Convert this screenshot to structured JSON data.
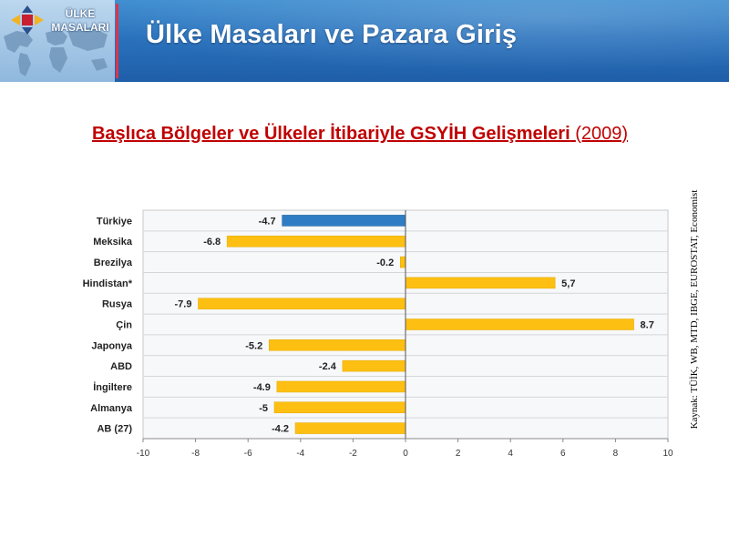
{
  "header": {
    "title": "Ülke Masaları ve Pazara Giriş",
    "logo_line1": "ÜLKE",
    "logo_line2": "MASALARI"
  },
  "chart_title": {
    "main": "Başlıca Bölgeler ve Ülkeler İtibariyle GSYİH Gelişmeleri",
    "year": "(2009)"
  },
  "source": "Kaynak: TÜİK, WB, MTD, IBGE, EUROSTAT, Economist",
  "colors": {
    "highlight": "#2e7cc4",
    "bar": "#fdc012",
    "title": "#c00000",
    "header": "#2a72bd"
  },
  "chart_data": {
    "type": "bar",
    "orientation": "horizontal",
    "title": "Başlıca Bölgeler ve Ülkeler İtibariyle GSYİH Gelişmeleri (2009)",
    "categories": [
      "Türkiye",
      "Meksika",
      "Brezilya",
      "Hindistan*",
      "Rusya",
      "Çin",
      "Japonya",
      "ABD",
      "İngiltere",
      "Almanya",
      "AB (27)"
    ],
    "values": [
      -4.7,
      -6.8,
      -0.2,
      5.7,
      -7.9,
      8.7,
      -5.2,
      -2.4,
      -4.9,
      -5,
      -4.2
    ],
    "value_labels": [
      "-4.7",
      "-6.8",
      "-0.2",
      "5,7",
      "-7.9",
      "8.7",
      "-5.2",
      "-2.4",
      "-4.9",
      "-5",
      "-4.2"
    ],
    "highlight": "Türkiye",
    "xlim": [
      -10,
      10
    ],
    "xticks": [
      -10,
      -8,
      -6,
      -4,
      -2,
      0,
      2,
      4,
      6,
      8,
      10
    ],
    "xlabel": "",
    "ylabel": "",
    "grid": true
  }
}
